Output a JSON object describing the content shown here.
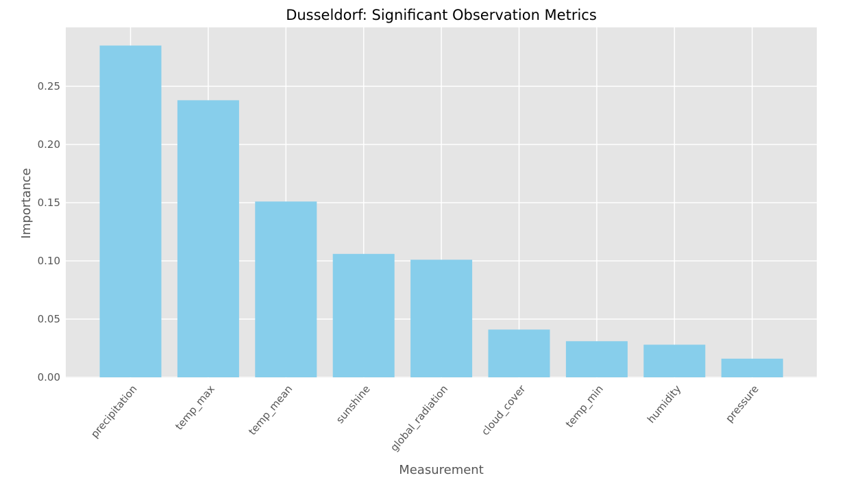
{
  "chart_data": {
    "type": "bar",
    "title": "Dusseldorf: Significant Observation Metrics",
    "xlabel": "Measurement",
    "ylabel": "Importance",
    "categories": [
      "precipitation",
      "temp_max",
      "temp_mean",
      "sunshine",
      "global_radiation",
      "cloud_cover",
      "temp_min",
      "humidity",
      "pressure"
    ],
    "values": [
      0.285,
      0.238,
      0.151,
      0.106,
      0.101,
      0.041,
      0.031,
      0.028,
      0.016
    ],
    "yticks": [
      "0.00",
      "0.05",
      "0.10",
      "0.15",
      "0.20",
      "0.25"
    ],
    "ylim": [
      0,
      0.3
    ],
    "grid": true,
    "colors": {
      "bar": "#87ceeb",
      "plot_bg": "#e5e5e5",
      "grid": "#ffffff"
    }
  }
}
